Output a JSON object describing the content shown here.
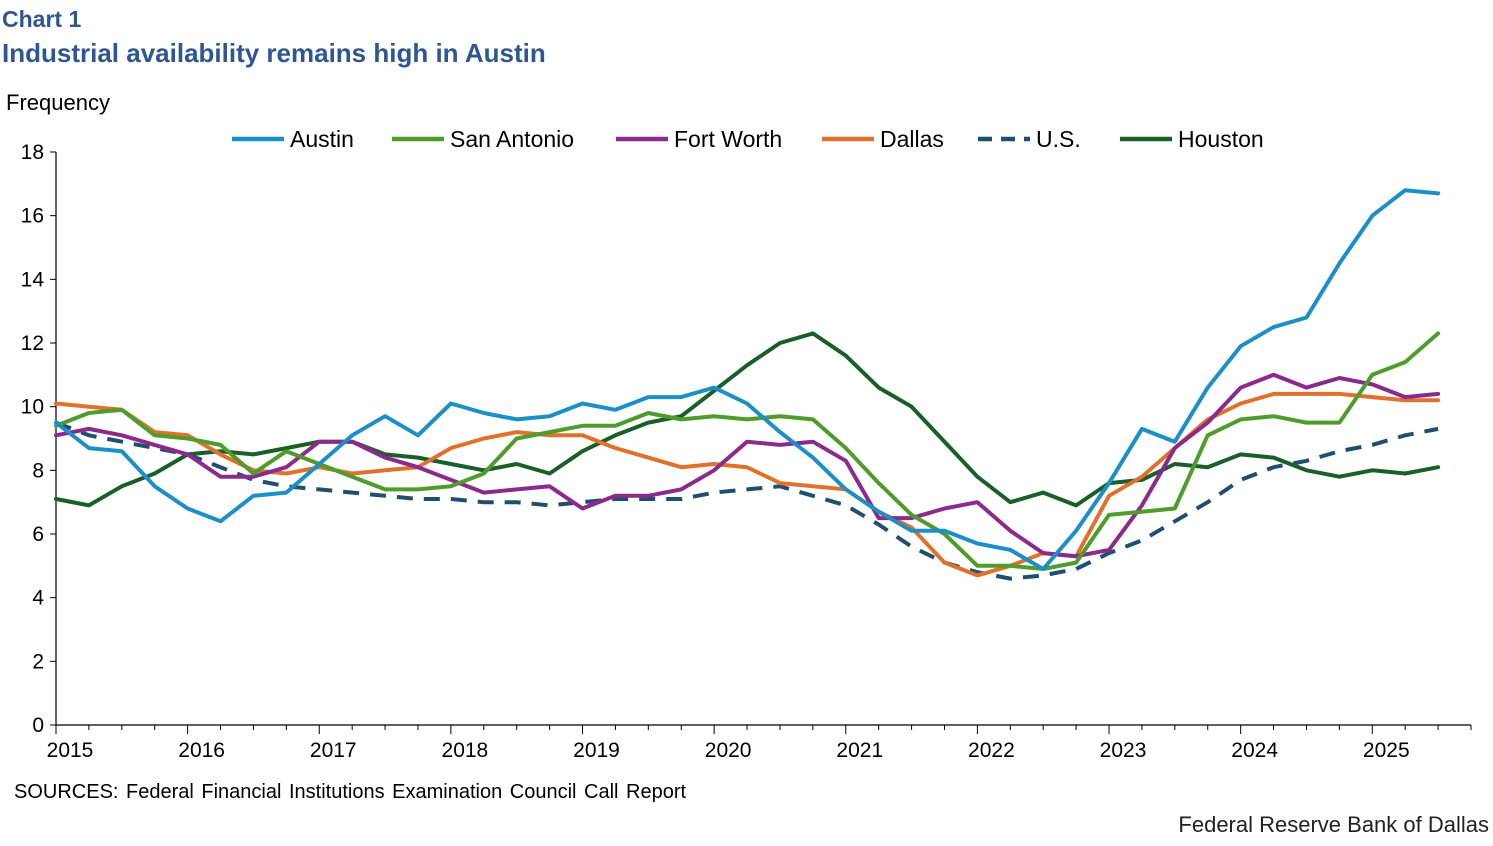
{
  "header": {
    "chart_label": "Chart 1",
    "title": "Industrial availability remains high in Austin",
    "y_unit": "Frequency"
  },
  "footer": {
    "sources": "SOURCES: Federal Financial Institutions Examination Council Call Report",
    "credit": "Federal Reserve Bank of Dallas"
  },
  "chart_data": {
    "type": "line",
    "title": "Industrial availability remains high in Austin",
    "xlabel": "",
    "ylabel": "Frequency",
    "ylim": [
      0,
      18
    ],
    "yticks": [
      0,
      2,
      4,
      6,
      8,
      10,
      12,
      14,
      16,
      18
    ],
    "xlim": [
      2015.0,
      2025.75
    ],
    "xticks": [
      2015,
      2016,
      2017,
      2018,
      2019,
      2020,
      2021,
      2022,
      2023,
      2024,
      2025
    ],
    "x_start": 2015.0,
    "x_step": 0.25,
    "grid": false,
    "legend": "top",
    "series": [
      {
        "name": "Austin",
        "color": "#1b8fc6",
        "dash": false,
        "values": [
          9.5,
          8.7,
          8.6,
          7.5,
          6.8,
          6.4,
          7.2,
          7.3,
          8.2,
          9.1,
          9.7,
          9.1,
          10.1,
          9.8,
          9.6,
          9.7,
          10.1,
          9.9,
          10.3,
          10.3,
          10.6,
          10.1,
          9.2,
          8.4,
          7.4,
          6.7,
          6.1,
          6.1,
          5.7,
          5.5,
          4.9,
          6.1,
          7.6,
          9.3,
          8.9,
          10.6,
          11.9,
          12.5,
          12.8,
          14.5,
          16.0,
          16.8,
          16.7
        ]
      },
      {
        "name": "San Antonio",
        "color": "#4f9c2d",
        "dash": false,
        "values": [
          9.4,
          9.8,
          9.9,
          9.1,
          9.0,
          8.8,
          7.9,
          8.6,
          8.2,
          7.8,
          7.4,
          7.4,
          7.5,
          7.9,
          9.0,
          9.2,
          9.4,
          9.4,
          9.8,
          9.6,
          9.7,
          9.6,
          9.7,
          9.6,
          8.7,
          7.6,
          6.6,
          6.0,
          5.0,
          5.0,
          4.9,
          5.1,
          6.6,
          6.7,
          6.8,
          9.1,
          9.6,
          9.7,
          9.5,
          9.5,
          11.0,
          11.4,
          12.3
        ]
      },
      {
        "name": "Fort Worth",
        "color": "#8a2a8c",
        "dash": false,
        "values": [
          9.1,
          9.3,
          9.1,
          8.8,
          8.5,
          7.8,
          7.8,
          8.1,
          8.9,
          8.9,
          8.4,
          8.1,
          7.7,
          7.3,
          7.4,
          7.5,
          6.8,
          7.2,
          7.2,
          7.4,
          8.0,
          8.9,
          8.8,
          8.9,
          8.3,
          6.5,
          6.5,
          6.8,
          7.0,
          6.1,
          5.4,
          5.3,
          5.5,
          6.9,
          8.7,
          9.5,
          10.6,
          11.0,
          10.6,
          10.9,
          10.7,
          10.3,
          10.4
        ]
      },
      {
        "name": "Dallas",
        "color": "#e0712c",
        "dash": false,
        "values": [
          10.1,
          10.0,
          9.9,
          9.2,
          9.1,
          8.5,
          8.0,
          7.9,
          8.1,
          7.9,
          8.0,
          8.1,
          8.7,
          9.0,
          9.2,
          9.1,
          9.1,
          8.7,
          8.4,
          8.1,
          8.2,
          8.1,
          7.6,
          7.5,
          7.4,
          6.7,
          6.2,
          5.1,
          4.7,
          5.0,
          5.4,
          5.3,
          7.2,
          7.8,
          8.7,
          9.6,
          10.1,
          10.4,
          10.4,
          10.4,
          10.3,
          10.2,
          10.2
        ]
      },
      {
        "name": "U.S.",
        "color": "#1f4e6e",
        "dash": true,
        "values": [
          9.5,
          9.1,
          8.9,
          8.7,
          8.5,
          8.1,
          7.7,
          7.5,
          7.4,
          7.3,
          7.2,
          7.1,
          7.1,
          7.0,
          7.0,
          6.9,
          7.0,
          7.1,
          7.1,
          7.1,
          7.3,
          7.4,
          7.5,
          7.2,
          6.9,
          6.3,
          5.6,
          5.1,
          4.8,
          4.6,
          4.7,
          4.9,
          5.4,
          5.8,
          6.4,
          7.0,
          7.7,
          8.1,
          8.3,
          8.6,
          8.8,
          9.1,
          9.3
        ]
      },
      {
        "name": "Houston",
        "color": "#1a5e28",
        "dash": false,
        "values": [
          7.1,
          6.9,
          7.5,
          7.9,
          8.5,
          8.6,
          8.5,
          8.7,
          8.9,
          8.9,
          8.5,
          8.4,
          8.2,
          8.0,
          8.2,
          7.9,
          8.6,
          9.1,
          9.5,
          9.7,
          10.5,
          11.3,
          12.0,
          12.3,
          11.6,
          10.6,
          10.0,
          8.9,
          7.8,
          7.0,
          7.3,
          6.9,
          7.6,
          7.7,
          8.2,
          8.1,
          8.5,
          8.4,
          8.0,
          7.8,
          8.0,
          7.9,
          8.1
        ]
      }
    ]
  }
}
